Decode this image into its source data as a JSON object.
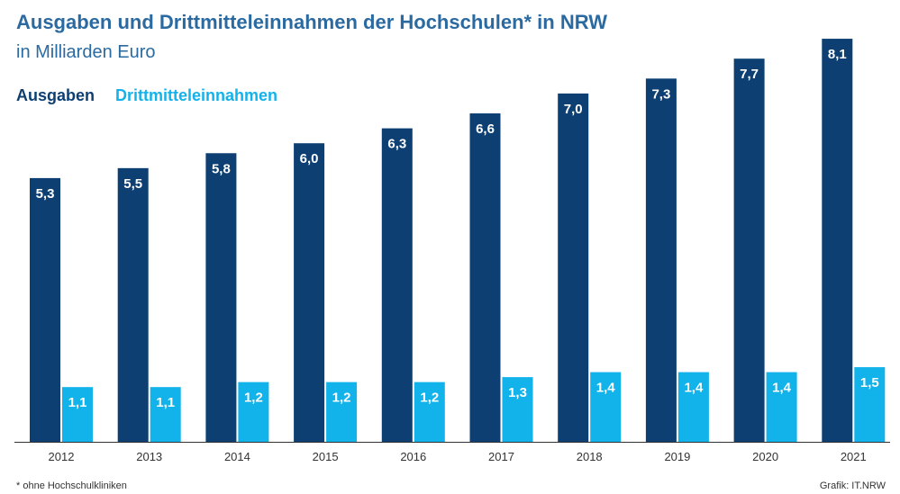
{
  "header": {
    "title": "Ausgaben und Drittmitteleinnahmen der Hochschulen* in NRW",
    "subtitle": "in Milliarden Euro"
  },
  "legend": {
    "series1": "Ausgaben",
    "series2": "Drittmitteleinnahmen"
  },
  "footer": {
    "footnote": "* ohne Hochschulkliniken",
    "source": "Grafik: IT.NRW"
  },
  "colors": {
    "series1": "#0d3f73",
    "series2": "#12b2ea",
    "axis": "#333333"
  },
  "chart_data": {
    "type": "bar",
    "categories": [
      "2012",
      "2013",
      "2014",
      "2015",
      "2016",
      "2017",
      "2018",
      "2019",
      "2020",
      "2021"
    ],
    "series": [
      {
        "name": "Ausgaben",
        "values": [
          5.3,
          5.5,
          5.8,
          6.0,
          6.3,
          6.6,
          7.0,
          7.3,
          7.7,
          8.1
        ],
        "labels": [
          "5,3",
          "5,5",
          "5,8",
          "6,0",
          "6,3",
          "6,6",
          "7,0",
          "7,3",
          "7,7",
          "8,1"
        ]
      },
      {
        "name": "Drittmitteleinnahmen",
        "values": [
          1.1,
          1.1,
          1.2,
          1.2,
          1.2,
          1.3,
          1.4,
          1.4,
          1.4,
          1.5
        ],
        "labels": [
          "1,1",
          "1,1",
          "1,2",
          "1,2",
          "1,2",
          "1,3",
          "1,4",
          "1,4",
          "1,4",
          "1,5"
        ]
      }
    ],
    "grid": false,
    "legend_position": "top-left"
  }
}
